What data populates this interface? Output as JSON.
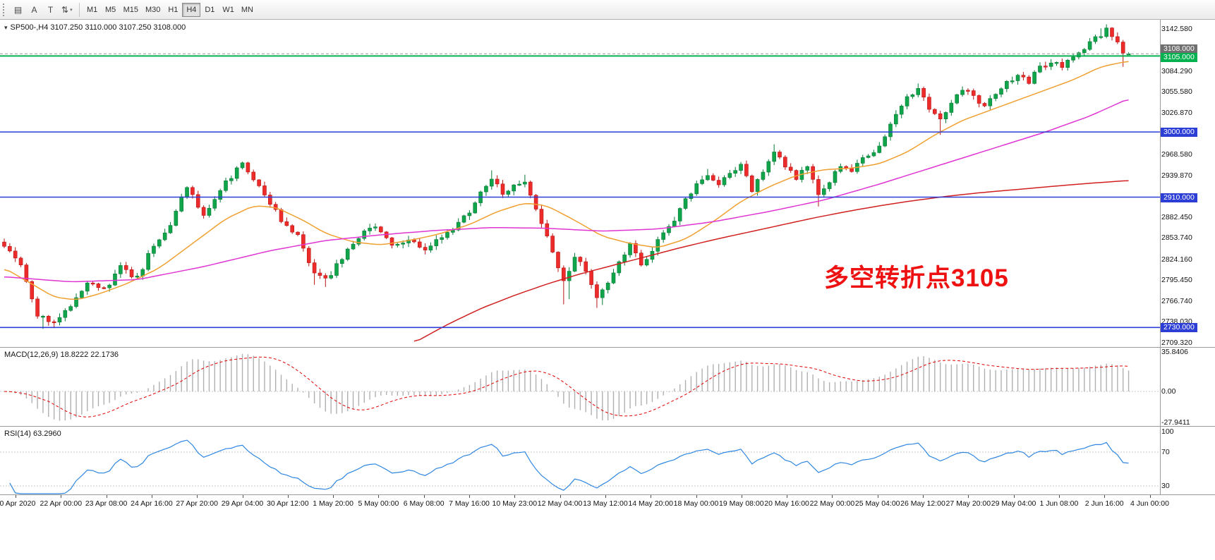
{
  "toolbar": {
    "tools": [
      {
        "name": "windows-tile",
        "glyph": "▤"
      },
      {
        "name": "text-label",
        "glyph": "A"
      },
      {
        "name": "text-tool",
        "glyph": "T"
      },
      {
        "name": "objects-dropdown",
        "glyph": "⇅",
        "caret": "▾"
      }
    ],
    "timeframes": [
      "M1",
      "M5",
      "M15",
      "M30",
      "H1",
      "H4",
      "D1",
      "W1",
      "MN"
    ],
    "active_timeframe": "H4"
  },
  "chart": {
    "menu_glyph": "▾",
    "symbol_line": "SP500-,H4  3107.250 3110.000 3107.250 3108.000",
    "annotation": {
      "text": "多空转折点3105",
      "color": "#ee1111"
    },
    "price_axis_labels": [
      {
        "text": "3142.580",
        "price": 3142.58
      },
      {
        "text": "3084.290",
        "price": 3084.29
      },
      {
        "text": "3055.580",
        "price": 3055.58
      },
      {
        "text": "3026.870",
        "price": 3026.87
      },
      {
        "text": "2968.580",
        "price": 2968.58
      },
      {
        "text": "2939.870",
        "price": 2939.87
      },
      {
        "text": "2882.450",
        "price": 2882.45
      },
      {
        "text": "2853.740",
        "price": 2853.74
      },
      {
        "text": "2824.160",
        "price": 2824.16
      },
      {
        "text": "2795.450",
        "price": 2795.45
      },
      {
        "text": "2766.740",
        "price": 2766.74
      },
      {
        "text": "2738.030",
        "price": 2738.03
      },
      {
        "text": "2709.320",
        "price": 2709.32
      }
    ],
    "price_badges": [
      {
        "text": "3108.000",
        "price": 3108,
        "bg": "#6f6f6f",
        "dy": -13
      },
      {
        "text": "3105.000",
        "price": 3105,
        "bg": "#00b14f",
        "dy": -4
      },
      {
        "text": "3000.000",
        "price": 3000,
        "bg": "#2c3ed6",
        "dy": -6
      },
      {
        "text": "2910.000",
        "price": 2910,
        "bg": "#2c3ed6",
        "dy": -6
      },
      {
        "text": "2730.000",
        "price": 2730,
        "bg": "#2c3ed6",
        "dy": -6
      }
    ],
    "hlines": [
      {
        "name": "bid-line",
        "price": 3108,
        "color": "#999999",
        "width": 1,
        "style": "dashed"
      },
      {
        "name": "level-3105",
        "price": 3105,
        "color": "#00b14f",
        "width": 2,
        "style": "solid"
      },
      {
        "name": "level-3000",
        "price": 3000,
        "color": "#2c3ed6",
        "width": 1.6,
        "style": "solid"
      },
      {
        "name": "level-2910",
        "price": 2910,
        "color": "#2c3ed6",
        "width": 1.6,
        "style": "solid"
      },
      {
        "name": "level-2730",
        "price": 2730,
        "color": "#2c3ed6",
        "width": 1.6,
        "style": "solid"
      }
    ],
    "time_labels": [
      "20 Apr 2020",
      "22 Apr 00:00",
      "23 Apr 08:00",
      "24 Apr 16:00",
      "27 Apr 20:00",
      "29 Apr 04:00",
      "30 Apr 12:00",
      "1 May 20:00",
      "5 May 00:00",
      "6 May 08:00",
      "7 May 16:00",
      "10 May 23:00",
      "12 May 04:00",
      "13 May 12:00",
      "14 May 20:00",
      "18 May 00:00",
      "19 May 08:00",
      "20 May 16:00",
      "22 May 00:00",
      "25 May 04:00",
      "26 May 12:00",
      "27 May 20:00",
      "29 May 04:00",
      "1 Jun 08:00",
      "2 Jun 16:00",
      "4 Jun 00:00"
    ],
    "chart_data": {
      "type": "candlestick",
      "symbol": "SP500-",
      "timeframe": "H4",
      "current_ohlc": {
        "open": 3107.25,
        "high": 3110.0,
        "low": 3107.25,
        "close": 3108.0
      },
      "y_range": [
        2703,
        3155
      ],
      "bars_total": 204,
      "seed": 97,
      "last_bar_ohlc": [
        3107.25,
        3110.0,
        3107.25,
        3108.0
      ],
      "up_color": "#10a54a",
      "up_stroke": "#067a35",
      "down_color": "#ee2b2b",
      "down_stroke": "#b81414",
      "horizontal_levels": [
        3105,
        3000,
        2910,
        2730
      ],
      "close_waypoints": [
        [
          0,
          2846
        ],
        [
          3,
          2815
        ],
        [
          6,
          2748
        ],
        [
          9,
          2738
        ],
        [
          12,
          2760
        ],
        [
          15,
          2795
        ],
        [
          18,
          2782
        ],
        [
          21,
          2812
        ],
        [
          24,
          2798
        ],
        [
          27,
          2845
        ],
        [
          30,
          2870
        ],
        [
          33,
          2925
        ],
        [
          36,
          2882
        ],
        [
          40,
          2930
        ],
        [
          43,
          2955
        ],
        [
          46,
          2922
        ],
        [
          50,
          2880
        ],
        [
          53,
          2855
        ],
        [
          56,
          2802
        ],
        [
          58,
          2795
        ],
        [
          61,
          2825
        ],
        [
          64,
          2855
        ],
        [
          67,
          2872
        ],
        [
          70,
          2840
        ],
        [
          73,
          2848
        ],
        [
          76,
          2838
        ],
        [
          79,
          2856
        ],
        [
          82,
          2872
        ],
        [
          85,
          2902
        ],
        [
          88,
          2938
        ],
        [
          90,
          2915
        ],
        [
          92,
          2928
        ],
        [
          94,
          2930
        ],
        [
          96,
          2895
        ],
        [
          98,
          2855
        ],
        [
          100,
          2812
        ],
        [
          101,
          2795
        ],
        [
          103,
          2828
        ],
        [
          105,
          2810
        ],
        [
          107,
          2775
        ],
        [
          109,
          2795
        ],
        [
          111,
          2822
        ],
        [
          113,
          2845
        ],
        [
          115,
          2815
        ],
        [
          117,
          2838
        ],
        [
          119,
          2862
        ],
        [
          121,
          2878
        ],
        [
          123,
          2905
        ],
        [
          125,
          2928
        ],
        [
          127,
          2940
        ],
        [
          129,
          2925
        ],
        [
          131,
          2942
        ],
        [
          133,
          2952
        ],
        [
          135,
          2920
        ],
        [
          137,
          2948
        ],
        [
          139,
          2972
        ],
        [
          141,
          2952
        ],
        [
          143,
          2938
        ],
        [
          145,
          2955
        ],
        [
          147,
          2912
        ],
        [
          149,
          2932
        ],
        [
          151,
          2952
        ],
        [
          153,
          2948
        ],
        [
          155,
          2962
        ],
        [
          157,
          2975
        ],
        [
          159,
          2992
        ],
        [
          161,
          3022
        ],
        [
          163,
          3048
        ],
        [
          165,
          3060
        ],
        [
          167,
          3035
        ],
        [
          169,
          3018
        ],
        [
          171,
          3042
        ],
        [
          173,
          3060
        ],
        [
          175,
          3048
        ],
        [
          177,
          3035
        ],
        [
          179,
          3056
        ],
        [
          181,
          3068
        ],
        [
          183,
          3078
        ],
        [
          185,
          3070
        ],
        [
          187,
          3088
        ],
        [
          189,
          3098
        ],
        [
          191,
          3092
        ],
        [
          193,
          3105
        ],
        [
          195,
          3118
        ],
        [
          197,
          3130
        ],
        [
          199,
          3140
        ],
        [
          201,
          3125
        ],
        [
          202,
          3112
        ],
        [
          203,
          3108
        ]
      ],
      "wick_extremes": [
        {
          "b": 7,
          "low": 2728
        },
        {
          "b": 9,
          "low": 2729
        },
        {
          "b": 10,
          "low": 2733
        },
        {
          "b": 43,
          "high": 2959
        },
        {
          "b": 56,
          "low": 2789
        },
        {
          "b": 58,
          "low": 2786
        },
        {
          "b": 88,
          "high": 2947
        },
        {
          "b": 94,
          "high": 2941
        },
        {
          "b": 101,
          "low": 2762
        },
        {
          "b": 102,
          "low": 2769
        },
        {
          "b": 107,
          "low": 2757
        },
        {
          "b": 108,
          "low": 2761
        },
        {
          "b": 127,
          "high": 2949
        },
        {
          "b": 133,
          "high": 2958
        },
        {
          "b": 139,
          "high": 2983
        },
        {
          "b": 147,
          "low": 2897
        },
        {
          "b": 165,
          "high": 3067
        },
        {
          "b": 169,
          "low": 2996
        },
        {
          "b": 198,
          "high": 3143
        },
        {
          "b": 199,
          "high": 3147
        },
        {
          "b": 202,
          "low": 3090
        }
      ],
      "moving_averages": [
        {
          "name": "ma-fast",
          "color": "#f0a030",
          "points": [
            [
              0,
              2812
            ],
            [
              5,
              2790
            ],
            [
              9,
              2772
            ],
            [
              13,
              2768
            ],
            [
              17,
              2776
            ],
            [
              22,
              2790
            ],
            [
              28,
              2812
            ],
            [
              34,
              2846
            ],
            [
              40,
              2880
            ],
            [
              45,
              2898
            ],
            [
              49,
              2896
            ],
            [
              54,
              2878
            ],
            [
              58,
              2860
            ],
            [
              63,
              2848
            ],
            [
              68,
              2844
            ],
            [
              73,
              2850
            ],
            [
              78,
              2858
            ],
            [
              84,
              2872
            ],
            [
              89,
              2890
            ],
            [
              94,
              2902
            ],
            [
              98,
              2898
            ],
            [
              103,
              2878
            ],
            [
              108,
              2856
            ],
            [
              113,
              2846
            ],
            [
              118,
              2840
            ],
            [
              123,
              2852
            ],
            [
              128,
              2876
            ],
            [
              133,
              2904
            ],
            [
              138,
              2924
            ],
            [
              143,
              2940
            ],
            [
              148,
              2948
            ],
            [
              153,
              2950
            ],
            [
              158,
              2956
            ],
            [
              163,
              2972
            ],
            [
              168,
              2996
            ],
            [
              173,
              3016
            ],
            [
              178,
              3030
            ],
            [
              183,
              3044
            ],
            [
              188,
              3058
            ],
            [
              193,
              3072
            ],
            [
              198,
              3090
            ],
            [
              203,
              3098
            ]
          ]
        },
        {
          "name": "ma-mid",
          "color": "#df35d2",
          "points": [
            [
              0,
              2800
            ],
            [
              12,
              2793
            ],
            [
              24,
              2796
            ],
            [
              36,
              2814
            ],
            [
              48,
              2836
            ],
            [
              58,
              2850
            ],
            [
              68,
              2858
            ],
            [
              78,
              2864
            ],
            [
              88,
              2868
            ],
            [
              98,
              2867
            ],
            [
              108,
              2863
            ],
            [
              118,
              2866
            ],
            [
              128,
              2876
            ],
            [
              138,
              2890
            ],
            [
              148,
              2906
            ],
            [
              158,
              2928
            ],
            [
              168,
              2952
            ],
            [
              178,
              2976
            ],
            [
              188,
              3000
            ],
            [
              196,
              3022
            ],
            [
              203,
              3046
            ]
          ]
        },
        {
          "name": "ma-slow",
          "color": "#d02020",
          "points": [
            [
              74,
              2709
            ],
            [
              80,
              2734
            ],
            [
              86,
              2756
            ],
            [
              92,
              2774
            ],
            [
              98,
              2790
            ],
            [
              104,
              2804
            ],
            [
              110,
              2816
            ],
            [
              116,
              2828
            ],
            [
              122,
              2840
            ],
            [
              128,
              2851
            ],
            [
              134,
              2861
            ],
            [
              140,
              2871
            ],
            [
              146,
              2881
            ],
            [
              152,
              2890
            ],
            [
              158,
              2898
            ],
            [
              164,
              2905
            ],
            [
              170,
              2911
            ],
            [
              176,
              2916
            ],
            [
              182,
              2920
            ],
            [
              188,
              2924
            ],
            [
              194,
              2928
            ],
            [
              203,
              2933
            ]
          ]
        }
      ]
    }
  },
  "macd": {
    "header": "MACD(12,26,9) 18.8222 22.1736",
    "axis_labels": [
      {
        "text": "35.8406",
        "value": 35.8406
      },
      {
        "text": "0.00",
        "value": 0
      },
      {
        "text": "-27.9411",
        "value": -27.9411
      }
    ],
    "histogram_color": "#b0b0b0",
    "signal_color": "#e00000",
    "params": {
      "fast": 12,
      "slow": 26,
      "signal": 9
    },
    "current": {
      "macd": 18.8222,
      "signal": 22.1736
    }
  },
  "rsi": {
    "header": "RSI(14) 63.2960",
    "axis_labels": [
      {
        "text": "100",
        "value": 100
      },
      {
        "text": "70",
        "value": 70
      },
      {
        "text": "30",
        "value": 30
      }
    ],
    "levels": [
      70,
      30
    ],
    "line_color": "#2e86e0",
    "period": 14,
    "current": 63.296
  }
}
